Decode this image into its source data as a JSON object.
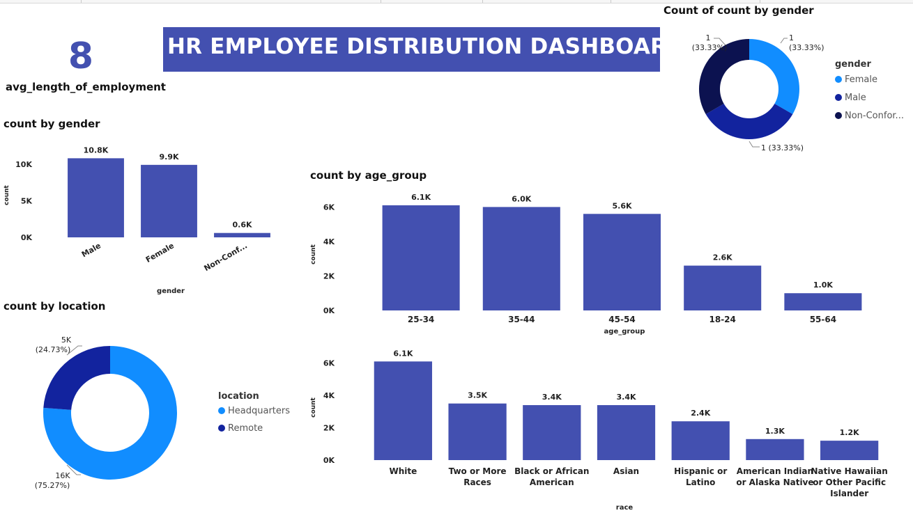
{
  "kpi": {
    "value": "8",
    "label": "avg_length_of_employment"
  },
  "banner": {
    "title": "HR EMPLOYEE DISTRIBUTION DASHBOARD"
  },
  "colors": {
    "bar": "#4350b0",
    "female": "#118dff",
    "male": "#12239e",
    "nonconforming": "#0c1250",
    "headquarters": "#118dff",
    "remote": "#12239e"
  },
  "chart_data": [
    {
      "id": "gender_bar",
      "type": "bar",
      "title": "count by gender",
      "xlabel": "gender",
      "ylabel": "count",
      "categories": [
        "Male",
        "Female",
        "Non-Conf..."
      ],
      "values": [
        10800,
        9900,
        600
      ],
      "labels": [
        "10.8K",
        "9.9K",
        "0.6K"
      ],
      "yticks": [
        0,
        5000,
        10000
      ],
      "ytick_labels": [
        "0K",
        "5K",
        "10K"
      ],
      "ylim": [
        0,
        11500
      ]
    },
    {
      "id": "gender_donut",
      "type": "pie",
      "title": "Count of count by gender",
      "legend_title": "gender",
      "legend_position": "right",
      "categories": [
        "Female",
        "Male",
        "Non-Confor..."
      ],
      "values": [
        1,
        1,
        1
      ],
      "slice_labels": [
        {
          "value": "1",
          "pct": "(33.33%)"
        },
        {
          "value": "1 (33.33%)",
          "pct": ""
        },
        {
          "value": "1",
          "pct": "(33.33%)"
        }
      ]
    },
    {
      "id": "age_bar",
      "type": "bar",
      "title": "count by age_group",
      "xlabel": "age_group",
      "ylabel": "count",
      "categories": [
        "25-34",
        "35-44",
        "45-54",
        "18-24",
        "55-64"
      ],
      "values": [
        6100,
        6000,
        5600,
        2600,
        1000
      ],
      "labels": [
        "6.1K",
        "6.0K",
        "5.6K",
        "2.6K",
        "1.0K"
      ],
      "yticks": [
        0,
        2000,
        4000,
        6000
      ],
      "ytick_labels": [
        "0K",
        "2K",
        "4K",
        "6K"
      ],
      "ylim": [
        0,
        6500
      ]
    },
    {
      "id": "location_donut",
      "type": "pie",
      "title": "count by location",
      "legend_title": "location",
      "legend_position": "right",
      "categories": [
        "Headquarters",
        "Remote"
      ],
      "values": [
        16000,
        5000
      ],
      "percentages": [
        75.27,
        24.73
      ],
      "slice_labels": [
        {
          "value": "16K",
          "pct": "(75.27%)"
        },
        {
          "value": "5K",
          "pct": "(24.73%)"
        }
      ]
    },
    {
      "id": "race_bar",
      "type": "bar",
      "title": "",
      "xlabel": "race",
      "ylabel": "count",
      "categories": [
        [
          "White"
        ],
        [
          "Two or More",
          "Races"
        ],
        [
          "Black or African",
          "American"
        ],
        [
          "Asian"
        ],
        [
          "Hispanic or",
          "Latino"
        ],
        [
          "American Indian",
          "or Alaska Native"
        ],
        [
          "Native Hawaiian",
          "or Other Pacific",
          "Islander"
        ]
      ],
      "values": [
        6100,
        3500,
        3400,
        3400,
        2400,
        1300,
        1200
      ],
      "labels": [
        "6.1K",
        "3.5K",
        "3.4K",
        "3.4K",
        "2.4K",
        "1.3K",
        "1.2K"
      ],
      "yticks": [
        0,
        2000,
        4000,
        6000
      ],
      "ytick_labels": [
        "0K",
        "2K",
        "4K",
        "6K"
      ],
      "ylim": [
        0,
        6500
      ]
    }
  ]
}
